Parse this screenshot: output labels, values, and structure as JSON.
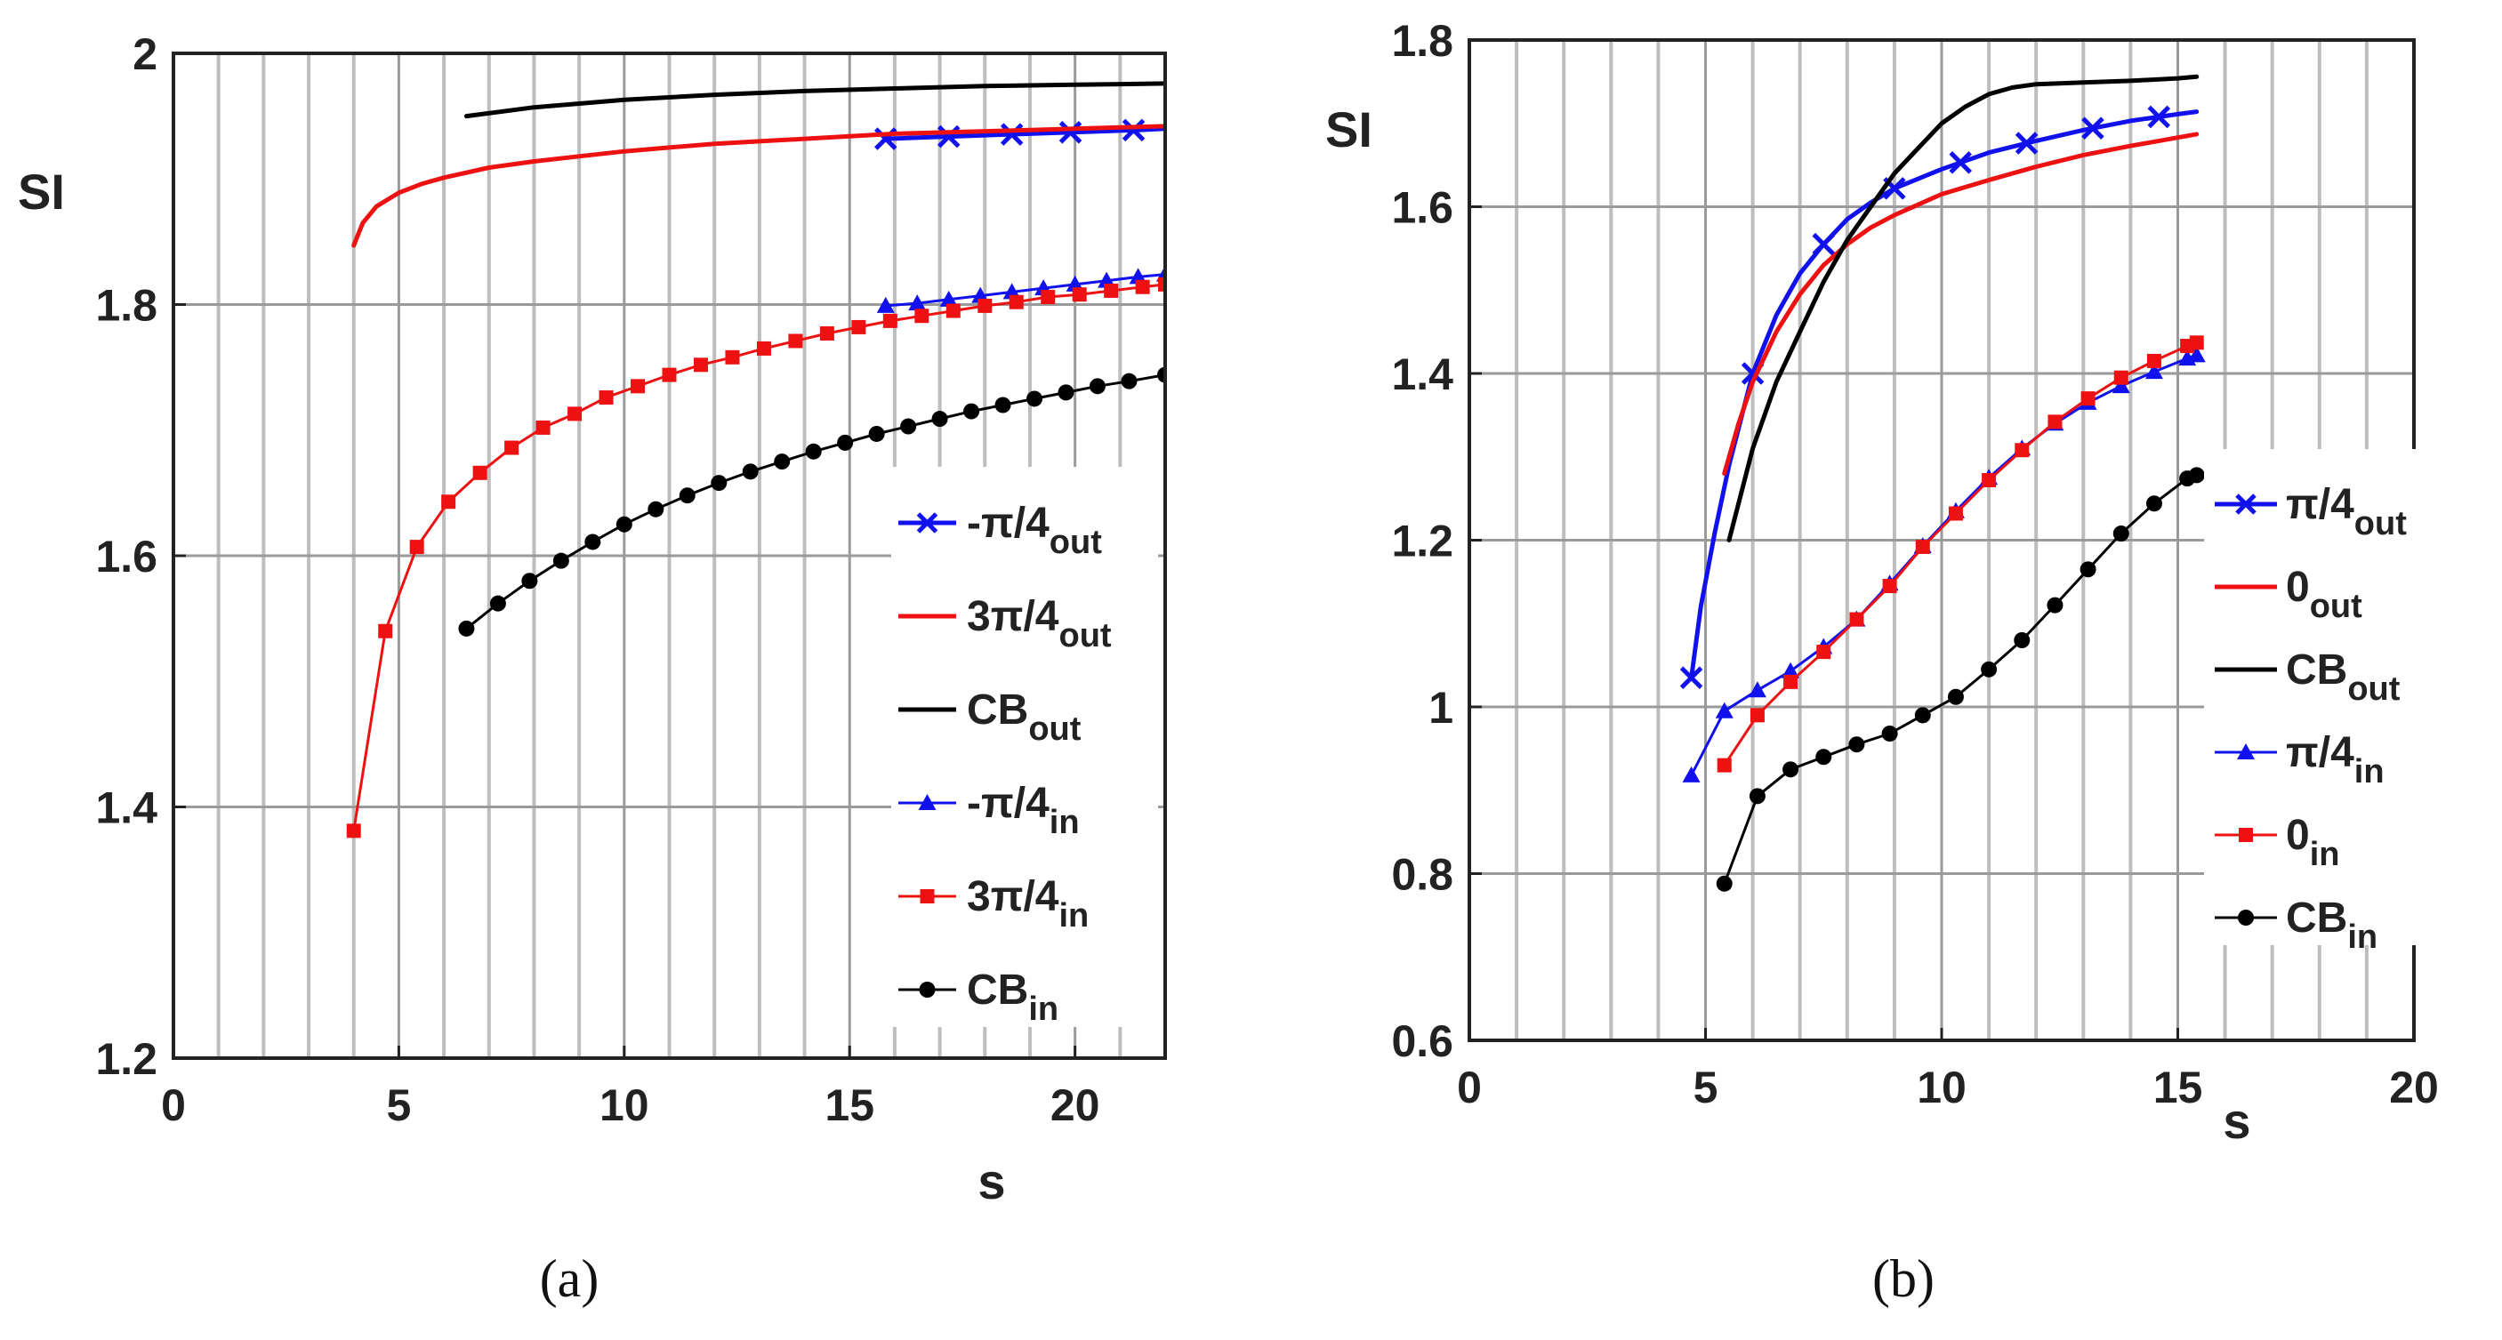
{
  "colors": {
    "blue": "#1111ee",
    "red": "#ee1111",
    "black": "#000000",
    "grid_minor": "#bdbdbd",
    "grid_major": "#9a9a9a"
  },
  "chart_data": [
    {
      "type": "line",
      "panel_label": "(a)",
      "xlabel": "s",
      "ylabel": "SI",
      "xlim": [
        0,
        22
      ],
      "ylim": [
        1.2,
        2.0
      ],
      "xticks": [
        "0",
        "5",
        "10",
        "15",
        "20"
      ],
      "yticks": [
        "1.2",
        "1.4",
        "1.6",
        "1.8",
        "2"
      ],
      "grid": "vertical minor + major",
      "legend_position": "bottom-right",
      "series": [
        {
          "name": "-π/4",
          "sub": "out",
          "color": "blue",
          "marker": "x",
          "width": 5,
          "x": [
            15.8,
            16.6,
            17.4,
            18.2,
            19.0,
            19.8,
            20.6,
            21.4,
            22.0
          ],
          "y": [
            1.932,
            1.933,
            1.934,
            1.935,
            1.936,
            1.937,
            1.938,
            1.939,
            1.94
          ],
          "markers": [
            15.8,
            17.2,
            18.6,
            19.9,
            21.3
          ]
        },
        {
          "name": "3π/4",
          "sub": "out",
          "color": "red",
          "marker": "none",
          "width": 5,
          "x": [
            4.0,
            4.2,
            4.5,
            5.0,
            5.5,
            6.0,
            7.0,
            8.0,
            9.0,
            10.0,
            11.0,
            12.0,
            13.0,
            14.0,
            15.0,
            16.0,
            17.0,
            18.0,
            19.0,
            20.0,
            21.0,
            22.0
          ],
          "y": [
            1.847,
            1.865,
            1.878,
            1.889,
            1.896,
            1.901,
            1.909,
            1.914,
            1.918,
            1.922,
            1.925,
            1.928,
            1.93,
            1.932,
            1.934,
            1.936,
            1.937,
            1.938,
            1.939,
            1.94,
            1.941,
            1.942
          ]
        },
        {
          "name": "CB",
          "sub": "out",
          "color": "black",
          "marker": "none",
          "width": 5,
          "x": [
            6.5,
            8.0,
            10.0,
            12.0,
            14.0,
            16.0,
            18.0,
            20.0,
            22.0
          ],
          "y": [
            1.95,
            1.957,
            1.963,
            1.967,
            1.97,
            1.972,
            1.974,
            1.975,
            1.976
          ]
        },
        {
          "name": "-π/4",
          "sub": "in",
          "color": "blue",
          "marker": "triangle",
          "width": 3,
          "x": [
            15.8,
            16.5,
            17.2,
            17.9,
            18.6,
            19.3,
            20.0,
            20.7,
            21.4,
            22.0
          ],
          "y": [
            1.799,
            1.801,
            1.804,
            1.807,
            1.81,
            1.813,
            1.816,
            1.819,
            1.822,
            1.824
          ]
        },
        {
          "name": "3π/4",
          "sub": "in",
          "color": "red",
          "marker": "square",
          "width": 3,
          "x": [
            4.0,
            4.7,
            5.4,
            6.1,
            6.8,
            7.5,
            8.2,
            8.9,
            9.6,
            10.3,
            11.0,
            11.7,
            12.4,
            13.1,
            13.8,
            14.5,
            15.2,
            15.9,
            16.6,
            17.3,
            18.0,
            18.7,
            19.4,
            20.1,
            20.8,
            21.5,
            22.0
          ],
          "y": [
            1.381,
            1.54,
            1.607,
            1.643,
            1.666,
            1.686,
            1.702,
            1.713,
            1.726,
            1.735,
            1.744,
            1.752,
            1.758,
            1.765,
            1.771,
            1.777,
            1.782,
            1.787,
            1.791,
            1.795,
            1.799,
            1.802,
            1.806,
            1.808,
            1.811,
            1.814,
            1.816
          ]
        },
        {
          "name": "CB",
          "sub": "in",
          "color": "black",
          "marker": "circle",
          "width": 3,
          "x": [
            6.5,
            7.2,
            7.9,
            8.6,
            9.3,
            10.0,
            10.7,
            11.4,
            12.1,
            12.8,
            13.5,
            14.2,
            14.9,
            15.6,
            16.3,
            17.0,
            17.7,
            18.4,
            19.1,
            19.8,
            20.5,
            21.2,
            22.0
          ],
          "y": [
            1.542,
            1.562,
            1.58,
            1.596,
            1.611,
            1.625,
            1.637,
            1.648,
            1.658,
            1.667,
            1.675,
            1.683,
            1.69,
            1.697,
            1.703,
            1.709,
            1.715,
            1.72,
            1.725,
            1.73,
            1.735,
            1.739,
            1.744
          ]
        }
      ]
    },
    {
      "type": "line",
      "panel_label": "(b)",
      "xlabel": "s",
      "ylabel": "SI",
      "xlim": [
        0,
        20
      ],
      "ylim": [
        0.6,
        1.8
      ],
      "xticks": [
        "0",
        "5",
        "10",
        "15",
        "20"
      ],
      "yticks": [
        "0.6",
        "0.8",
        "1",
        "1.2",
        "1.4",
        "1.6",
        "1.8"
      ],
      "grid": "vertical minor + major",
      "legend_position": "right",
      "series": [
        {
          "name": "π/4",
          "sub": "out",
          "color": "blue",
          "marker": "x",
          "width": 5,
          "x": [
            4.7,
            4.9,
            5.2,
            5.5,
            6.0,
            6.5,
            7.0,
            7.5,
            8.0,
            8.5,
            9.0,
            10.0,
            11.0,
            12.0,
            13.0,
            14.0,
            15.0,
            15.4
          ],
          "y": [
            1.035,
            1.12,
            1.21,
            1.29,
            1.4,
            1.47,
            1.52,
            1.555,
            1.585,
            1.605,
            1.622,
            1.645,
            1.665,
            1.679,
            1.692,
            1.703,
            1.711,
            1.714
          ],
          "markers": [
            4.7,
            6.0,
            7.5,
            9.0,
            10.4,
            11.8,
            13.2,
            14.6
          ]
        },
        {
          "name": "0",
          "sub": "out",
          "color": "red",
          "marker": "none",
          "width": 5,
          "x": [
            5.4,
            5.7,
            6.0,
            6.5,
            7.0,
            7.5,
            8.0,
            8.5,
            9.0,
            10.0,
            11.0,
            12.0,
            13.0,
            14.0,
            15.0,
            15.4
          ],
          "y": [
            1.28,
            1.34,
            1.39,
            1.45,
            1.495,
            1.53,
            1.555,
            1.575,
            1.59,
            1.615,
            1.632,
            1.648,
            1.662,
            1.673,
            1.683,
            1.687
          ]
        },
        {
          "name": "CB",
          "sub": "out",
          "color": "black",
          "marker": "none",
          "width": 5,
          "x": [
            5.5,
            6.0,
            6.5,
            7.0,
            7.5,
            8.0,
            8.5,
            9.0,
            9.5,
            10.0,
            10.5,
            11.0,
            11.5,
            12.0,
            13.0,
            14.0,
            15.0,
            15.4
          ],
          "y": [
            1.2,
            1.31,
            1.39,
            1.45,
            1.51,
            1.56,
            1.6,
            1.64,
            1.67,
            1.7,
            1.72,
            1.735,
            1.743,
            1.747,
            1.749,
            1.751,
            1.754,
            1.756
          ]
        },
        {
          "name": "π/4",
          "sub": "in",
          "color": "blue",
          "marker": "triangle",
          "width": 3,
          "x": [
            4.7,
            5.4,
            6.1,
            6.8,
            7.5,
            8.2,
            8.9,
            9.6,
            10.3,
            11.0,
            11.7,
            12.4,
            13.1,
            13.8,
            14.5,
            15.2,
            15.4
          ],
          "y": [
            0.918,
            0.995,
            1.02,
            1.043,
            1.072,
            1.105,
            1.148,
            1.193,
            1.235,
            1.275,
            1.31,
            1.34,
            1.365,
            1.385,
            1.402,
            1.418,
            1.422
          ]
        },
        {
          "name": "0",
          "sub": "in",
          "color": "red",
          "marker": "square",
          "width": 3,
          "x": [
            5.4,
            6.1,
            6.8,
            7.5,
            8.2,
            8.9,
            9.6,
            10.3,
            11.0,
            11.7,
            12.4,
            13.1,
            13.8,
            14.5,
            15.2,
            15.4
          ],
          "y": [
            0.93,
            0.99,
            1.03,
            1.066,
            1.105,
            1.145,
            1.192,
            1.232,
            1.272,
            1.308,
            1.342,
            1.37,
            1.395,
            1.415,
            1.433,
            1.437
          ]
        },
        {
          "name": "CB",
          "sub": "in",
          "color": "black",
          "marker": "circle",
          "width": 3,
          "x": [
            5.4,
            6.1,
            6.8,
            7.5,
            8.2,
            8.9,
            9.6,
            10.3,
            11.0,
            11.7,
            12.4,
            13.1,
            13.8,
            14.5,
            15.2,
            15.4
          ],
          "y": [
            0.788,
            0.893,
            0.925,
            0.94,
            0.955,
            0.968,
            0.99,
            1.012,
            1.045,
            1.08,
            1.122,
            1.165,
            1.208,
            1.244,
            1.274,
            1.278
          ]
        }
      ]
    }
  ]
}
